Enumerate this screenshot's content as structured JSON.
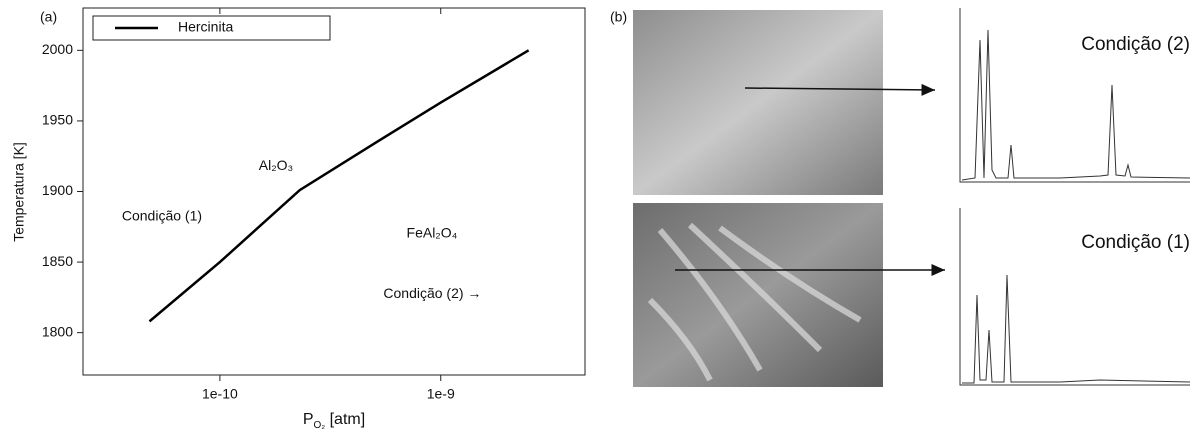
{
  "chart_data": {
    "type": "line",
    "panel_label": "(a)",
    "ylabel": "Temperatura [K]",
    "xlabel_parts": [
      "P",
      "O₂",
      " [atm]"
    ],
    "xscale": "log",
    "xlim": [
      2.4e-11,
      4.5e-09
    ],
    "xticks": [
      1e-10,
      1e-09
    ],
    "ylim": [
      1770,
      2030
    ],
    "yticks": [
      1800,
      1850,
      1900,
      1950,
      2000
    ],
    "x": [
      4.8e-11,
      1e-10,
      2.3e-10,
      5e-10,
      1e-09,
      2.5e-09
    ],
    "series": [
      {
        "name": "Hercinita",
        "color": "#000000",
        "values": [
          1808,
          1850,
          1901,
          1934,
          1963,
          2000
        ]
      }
    ],
    "legend": "upper-left",
    "annotations": [
      {
        "text": "Al₂O₃",
        "x": 1.5e-10,
        "y": 1918
      },
      {
        "text": "Condição (1)",
        "x": 3.6e-11,
        "y": 1882
      },
      {
        "text": "FeAl₂O₄",
        "x": 7e-10,
        "y": 1870
      },
      {
        "text": "Condição (2) →",
        "x": 5.5e-10,
        "y": 1827
      }
    ]
  },
  "panel_b": {
    "label": "(b)",
    "spectra": [
      {
        "label": "Condição (2)"
      },
      {
        "label": "Condição (1)"
      }
    ]
  }
}
